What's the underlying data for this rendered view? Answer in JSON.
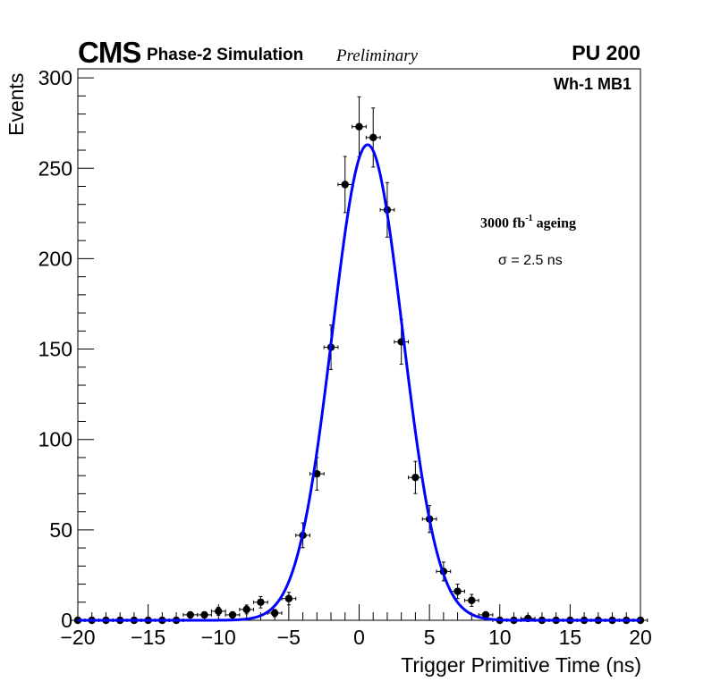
{
  "header": {
    "experiment": "CMS",
    "simulation_label": "Phase-2 Simulation",
    "status": "Preliminary",
    "pileup": "PU 200"
  },
  "annotations": {
    "station": "Wh-1 MB1",
    "ageing_prefix": "3000 fb",
    "ageing_exp": "-1",
    "ageing_suffix": " ageing",
    "sigma": "σ = 2.5 ns"
  },
  "colors": {
    "fit": "#0000ff",
    "points": "#000000"
  },
  "chart_data": {
    "type": "scatter",
    "title": "",
    "xlabel": "Trigger Primitive Time (ns)",
    "ylabel": "Events",
    "xlim": [
      -20,
      20
    ],
    "ylim": [
      0,
      305
    ],
    "bin_width": 1,
    "x_ticks": [
      -20,
      -15,
      -10,
      -5,
      0,
      5,
      10,
      15,
      20
    ],
    "x_tick_labels": [
      "−20",
      "−15",
      "−10",
      "−5",
      "0",
      "5",
      "10",
      "15",
      "20"
    ],
    "y_ticks": [
      0,
      50,
      100,
      150,
      200,
      250,
      300
    ],
    "y_tick_labels": [
      "0",
      "50",
      "100",
      "150",
      "200",
      "250",
      "300"
    ],
    "series": [
      {
        "name": "Simulation",
        "x": [
          -20,
          -19,
          -18,
          -17,
          -16,
          -15,
          -14,
          -13,
          -12,
          -11,
          -10,
          -9,
          -8,
          -7,
          -6,
          -5,
          -4,
          -3,
          -2,
          -1,
          0,
          1,
          2,
          3,
          4,
          5,
          6,
          7,
          8,
          9,
          10,
          11,
          12,
          13,
          14,
          15,
          16,
          17,
          18,
          19,
          20
        ],
        "y": [
          0,
          0,
          0,
          0,
          0,
          0,
          0,
          0,
          3,
          3,
          5,
          3,
          6,
          10,
          4,
          12,
          47,
          81,
          151,
          241,
          273,
          267,
          227,
          154,
          79,
          56,
          27,
          16,
          11,
          3,
          0,
          0,
          1,
          0,
          0,
          0,
          0,
          0,
          0,
          0,
          0
        ]
      }
    ],
    "fit": {
      "name": "Gaussian fit",
      "function": "gaussian",
      "amplitude": 263,
      "mean": 0.6,
      "sigma": 2.5
    }
  }
}
